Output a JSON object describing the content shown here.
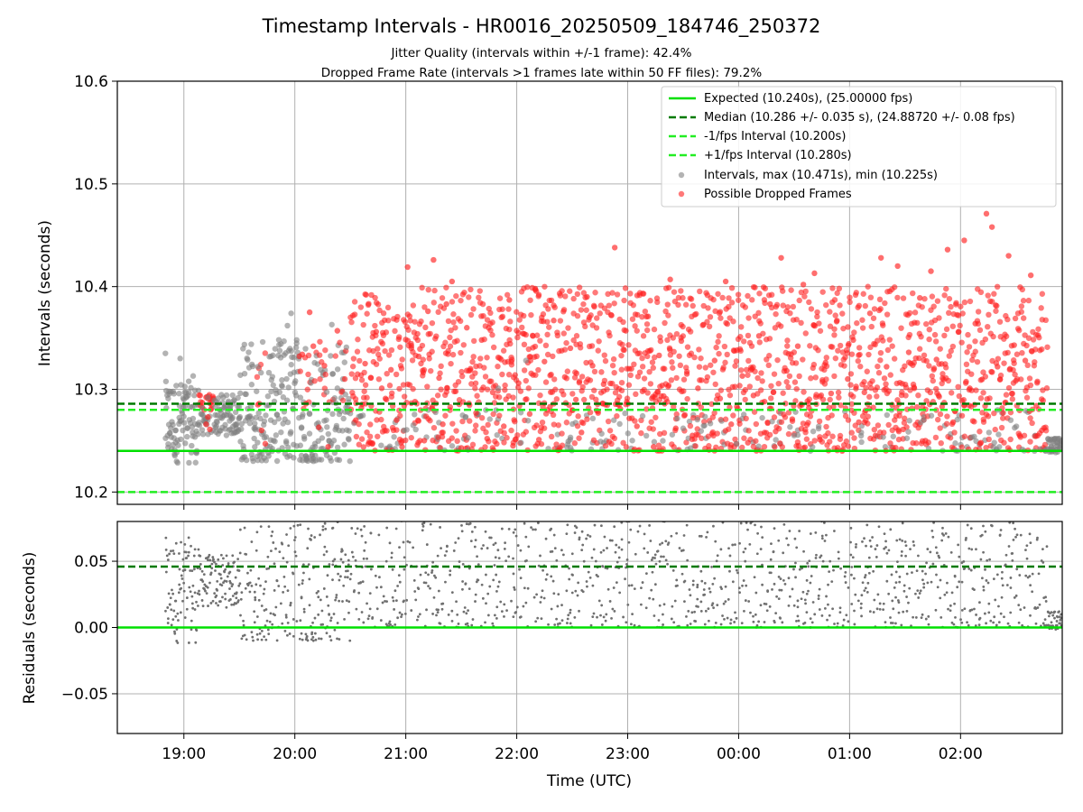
{
  "title": "Timestamp Intervals - HR0016_20250509_184746_250372",
  "subtitle_lines": [
    "Jitter Quality (intervals within +/-1 frame): 42.4%",
    "Dropped Frame Rate (intervals >1 frames late within 50 FF files): 79.2%"
  ],
  "colors": {
    "expected": "#00e000",
    "median": "#007a00",
    "interval_band": "#22ee22",
    "normal_points": "#808080",
    "dropped_points": "#ff2020",
    "residual_points": "#707070",
    "grid": "#b0b0b0"
  },
  "chart_data": [
    {
      "type": "scatter",
      "panel": "top",
      "ylabel": "Intervals (seconds)",
      "ylim": [
        10.188,
        10.6
      ],
      "yticks": [
        "10.2",
        "10.3",
        "10.4",
        "10.5",
        "10.6"
      ],
      "grid": true,
      "legend_position": "top-right",
      "reference_lines": [
        {
          "name": "Expected (10.240s), (25.00000 fps)",
          "y": 10.24,
          "style": "solid",
          "color": "expected"
        },
        {
          "name": "Median (10.286 +/- 0.035 s), (24.88720 +/- 0.08 fps)",
          "y": 10.286,
          "style": "dashed",
          "color": "median"
        },
        {
          "name": "-1/fps Interval (10.200s)",
          "y": 10.2,
          "style": "dashed",
          "color": "interval_band"
        },
        {
          "name": "+1/fps Interval (10.280s)",
          "y": 10.28,
          "style": "dashed",
          "color": "interval_band"
        }
      ],
      "series": [
        {
          "name": "Intervals, max (10.471s), min (10.225s)",
          "marker": "circle",
          "color": "normal_points",
          "max": 10.471,
          "min": 10.225
        },
        {
          "name": "Possible Dropped Frames",
          "marker": "circle",
          "color": "dropped_points"
        }
      ],
      "sample_points": {
        "grey": [
          [
            "18:50",
            10.335
          ],
          [
            "18:52",
            10.298
          ],
          [
            "18:55",
            10.241
          ],
          [
            "18:58",
            10.33
          ],
          [
            "19:00",
            10.29
          ],
          [
            "19:02",
            10.262
          ],
          [
            "19:05",
            10.313
          ],
          [
            "19:07",
            10.24
          ],
          [
            "19:10",
            10.282
          ],
          [
            "19:13",
            10.292
          ],
          [
            "19:17",
            10.275
          ],
          [
            "19:25",
            10.283
          ],
          [
            "19:30",
            10.272
          ],
          [
            "19:35",
            10.336
          ],
          [
            "19:38",
            10.262
          ],
          [
            "19:40",
            10.322
          ],
          [
            "19:43",
            10.258
          ],
          [
            "19:47",
            10.27
          ],
          [
            "19:50",
            10.296
          ],
          [
            "19:53",
            10.309
          ],
          [
            "19:56",
            10.362
          ],
          [
            "19:58",
            10.374
          ],
          [
            "20:01",
            10.348
          ],
          [
            "20:03",
            10.292
          ],
          [
            "20:06",
            10.235
          ],
          [
            "20:08",
            10.276
          ],
          [
            "20:11",
            10.244
          ],
          [
            "20:14",
            10.319
          ],
          [
            "20:17",
            10.27
          ],
          [
            "20:20",
            10.363
          ],
          [
            "20:23",
            10.301
          ],
          [
            "20:26",
            10.31
          ],
          [
            "20:29",
            10.252
          ],
          [
            "21:04",
            10.265
          ],
          [
            "21:50",
            10.301
          ],
          [
            "22:05",
            10.328
          ],
          [
            "23:30",
            10.262
          ],
          [
            "00:30",
            10.255
          ],
          [
            "01:40",
            10.27
          ],
          [
            "02:40",
            10.24
          ],
          [
            "02:43",
            10.242
          ],
          [
            "02:46",
            10.24
          ],
          [
            "02:49",
            10.244
          ],
          [
            "02:52",
            10.252
          ]
        ],
        "red": [
          [
            "19:10",
            10.287
          ],
          [
            "19:12",
            10.266
          ],
          [
            "19:13",
            10.273
          ],
          [
            "19:14",
            10.261
          ],
          [
            "19:40",
            10.285
          ],
          [
            "19:42",
            10.26
          ],
          [
            "19:44",
            10.247
          ],
          [
            "20:04",
            10.334
          ],
          [
            "20:06",
            10.286
          ],
          [
            "20:08",
            10.375
          ],
          [
            "20:10",
            10.342
          ],
          [
            "20:13",
            10.263
          ],
          [
            "20:16",
            10.323
          ],
          [
            "20:18",
            10.244
          ],
          [
            "20:23",
            10.357
          ],
          [
            "20:27",
            10.31
          ],
          [
            "20:33",
            10.27
          ],
          [
            "20:36",
            10.282
          ],
          [
            "20:38",
            10.325
          ],
          [
            "20:41",
            10.248
          ],
          [
            "20:44",
            10.356
          ],
          [
            "20:47",
            10.301
          ],
          [
            "20:49",
            10.291
          ],
          [
            "20:52",
            10.319
          ],
          [
            "20:55",
            10.27
          ],
          [
            "20:58",
            10.244
          ],
          [
            "21:01",
            10.419
          ],
          [
            "21:03",
            10.34
          ],
          [
            "21:05",
            10.288
          ],
          [
            "21:07",
            10.332
          ],
          [
            "21:10",
            10.25
          ],
          [
            "21:12",
            10.376
          ],
          [
            "21:15",
            10.426
          ],
          [
            "21:18",
            10.311
          ],
          [
            "21:20",
            10.266
          ],
          [
            "21:22",
            10.383
          ],
          [
            "21:25",
            10.405
          ],
          [
            "21:27",
            10.298
          ],
          [
            "21:30",
            10.243
          ],
          [
            "21:33",
            10.36
          ],
          [
            "21:35",
            10.32
          ],
          [
            "21:38",
            10.277
          ],
          [
            "21:41",
            10.348
          ],
          [
            "21:44",
            10.252
          ],
          [
            "21:47",
            10.297
          ],
          [
            "21:50",
            10.331
          ],
          [
            "21:53",
            10.264
          ],
          [
            "21:56",
            10.387
          ],
          [
            "21:58",
            10.245
          ],
          [
            "22:01",
            10.306
          ],
          [
            "22:04",
            10.354
          ],
          [
            "22:07",
            10.276
          ],
          [
            "22:10",
            10.398
          ],
          [
            "22:12",
            10.251
          ],
          [
            "22:15",
            10.327
          ],
          [
            "22:18",
            10.283
          ],
          [
            "22:20",
            10.367
          ],
          [
            "22:23",
            10.241
          ],
          [
            "22:26",
            10.312
          ],
          [
            "22:29",
            10.34
          ],
          [
            "22:32",
            10.29
          ],
          [
            "22:35",
            10.258
          ],
          [
            "22:38",
            10.39
          ],
          [
            "22:41",
            10.323
          ],
          [
            "22:44",
            10.277
          ],
          [
            "22:47",
            10.305
          ],
          [
            "22:50",
            10.249
          ],
          [
            "22:53",
            10.438
          ],
          [
            "22:56",
            10.281
          ],
          [
            "22:59",
            10.357
          ],
          [
            "23:02",
            10.32
          ],
          [
            "23:05",
            10.264
          ],
          [
            "23:08",
            10.298
          ],
          [
            "23:11",
            10.371
          ],
          [
            "23:14",
            10.244
          ],
          [
            "23:17",
            10.333
          ],
          [
            "23:20",
            10.286
          ],
          [
            "23:23",
            10.407
          ],
          [
            "23:26",
            10.262
          ],
          [
            "23:29",
            10.347
          ],
          [
            "23:32",
            10.315
          ],
          [
            "23:35",
            10.255
          ],
          [
            "23:38",
            10.301
          ],
          [
            "23:41",
            10.363
          ],
          [
            "23:44",
            10.241
          ],
          [
            "23:47",
            10.328
          ],
          [
            "23:50",
            10.291
          ],
          [
            "23:53",
            10.405
          ],
          [
            "23:56",
            10.266
          ],
          [
            "23:59",
            10.338
          ],
          [
            "00:02",
            10.313
          ],
          [
            "00:05",
            10.248
          ],
          [
            "00:08",
            10.294
          ],
          [
            "00:11",
            10.352
          ],
          [
            "00:14",
            10.288
          ],
          [
            "00:17",
            10.383
          ],
          [
            "00:20",
            10.259
          ],
          [
            "00:23",
            10.428
          ],
          [
            "00:26",
            10.318
          ],
          [
            "00:29",
            10.271
          ],
          [
            "00:32",
            10.342
          ],
          [
            "00:35",
            10.402
          ],
          [
            "00:38",
            10.282
          ],
          [
            "00:41",
            10.413
          ],
          [
            "00:44",
            10.251
          ],
          [
            "00:47",
            10.326
          ],
          [
            "00:50",
            10.296
          ],
          [
            "00:53",
            10.366
          ],
          [
            "00:56",
            10.24
          ],
          [
            "00:59",
            10.31
          ],
          [
            "01:02",
            10.348
          ],
          [
            "01:05",
            10.268
          ],
          [
            "01:08",
            10.297
          ],
          [
            "01:11",
            10.374
          ],
          [
            "01:14",
            10.255
          ],
          [
            "01:17",
            10.428
          ],
          [
            "01:20",
            10.322
          ],
          [
            "01:23",
            10.285
          ],
          [
            "01:26",
            10.42
          ],
          [
            "01:29",
            10.261
          ],
          [
            "01:32",
            10.336
          ],
          [
            "01:35",
            10.301
          ],
          [
            "01:38",
            10.389
          ],
          [
            "01:41",
            10.25
          ],
          [
            "01:44",
            10.415
          ],
          [
            "01:47",
            10.329
          ],
          [
            "01:50",
            10.283
          ],
          [
            "01:53",
            10.436
          ],
          [
            "01:56",
            10.268
          ],
          [
            "01:59",
            10.356
          ],
          [
            "02:02",
            10.445
          ],
          [
            "02:05",
            10.301
          ],
          [
            "02:08",
            10.364
          ],
          [
            "02:11",
            10.248
          ],
          [
            "02:14",
            10.471
          ],
          [
            "02:17",
            10.458
          ],
          [
            "02:20",
            10.322
          ],
          [
            "02:23",
            10.277
          ],
          [
            "02:26",
            10.43
          ],
          [
            "02:29",
            10.343
          ],
          [
            "02:32",
            10.255
          ],
          [
            "02:35",
            10.328
          ],
          [
            "02:38",
            10.411
          ],
          [
            "02:41",
            10.284
          ],
          [
            "02:44",
            10.26
          ]
        ]
      }
    },
    {
      "type": "scatter",
      "panel": "bottom",
      "ylabel": "Residuals (seconds)",
      "ylim": [
        -0.08,
        0.08
      ],
      "yticks": [
        "−0.05",
        "0.00",
        "0.05"
      ],
      "grid": true,
      "reference_lines": [
        {
          "y": 0.0,
          "style": "solid",
          "color": "expected"
        },
        {
          "y": 0.046,
          "style": "dashed",
          "color": "median"
        }
      ],
      "xlabel": "Time (UTC)",
      "xrange": [
        "18:24",
        "02:55"
      ],
      "xticks": [
        "19:00",
        "20:00",
        "21:00",
        "22:00",
        "23:00",
        "00:00",
        "01:00",
        "02:00"
      ]
    }
  ]
}
